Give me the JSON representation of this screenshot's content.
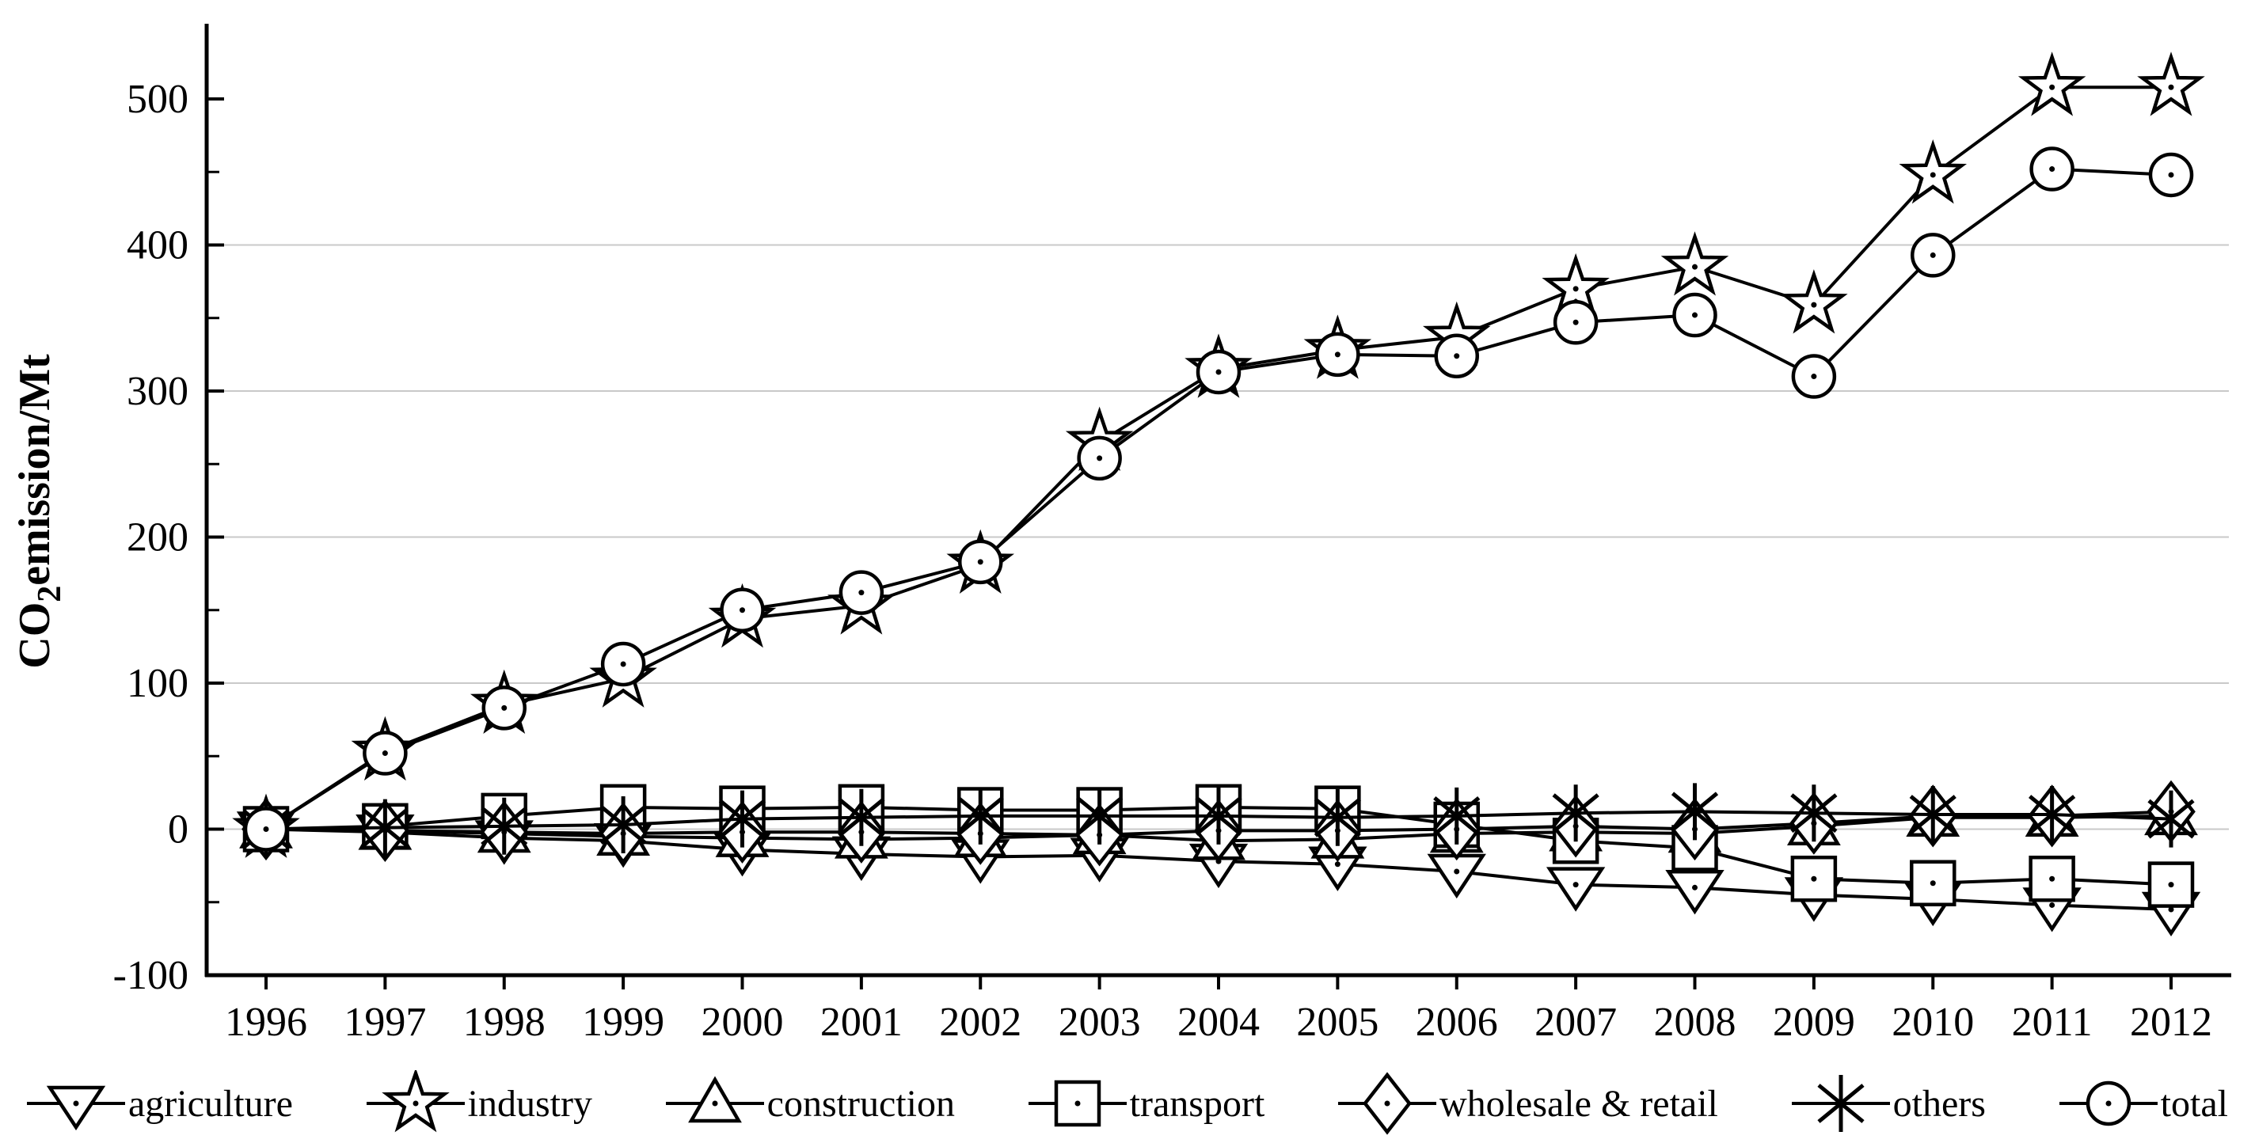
{
  "chart_data": {
    "type": "line",
    "title": "",
    "ylabel": {
      "pre": "CO",
      "sub": "2",
      "post": "emission/Mt"
    },
    "xlabel": "",
    "x_years": [
      "1996",
      "1997",
      "1998",
      "1999",
      "2000",
      "2001",
      "2002",
      "2003",
      "2004",
      "2005",
      "2006",
      "2007",
      "2008",
      "2009",
      "2010",
      "2011",
      "2012"
    ],
    "ylim": [
      -100,
      550
    ],
    "yticks": [
      {
        "value": -100,
        "label": "-100"
      },
      {
        "value": 0,
        "label": "0"
      },
      {
        "value": 100,
        "label": "100"
      },
      {
        "value": 200,
        "label": "200"
      },
      {
        "value": 300,
        "label": "300"
      },
      {
        "value": 400,
        "label": "400"
      },
      {
        "value": 500,
        "label": "500"
      }
    ],
    "y_minor_ticks": [
      -50,
      50,
      150,
      250,
      350,
      450
    ],
    "grid_values": [
      0,
      100,
      200,
      300,
      400
    ],
    "grid_on": true,
    "legend_position": "bottom",
    "colors": {
      "line": "#000000",
      "grid": "#c9c9c9",
      "background": "#ffffff",
      "marker_fill": "#ffffff"
    },
    "series": [
      {
        "name": "agriculture",
        "marker": "triangle-down",
        "values": [
          0,
          -2,
          -6,
          -8,
          -14,
          -17,
          -19,
          -18,
          -22,
          -24,
          -29,
          -38,
          -40,
          -45,
          -48,
          -52,
          -55
        ]
      },
      {
        "name": "industry",
        "marker": "star",
        "values": [
          0,
          53,
          85,
          103,
          144,
          153,
          181,
          265,
          315,
          328,
          337,
          370,
          385,
          359,
          448,
          508,
          508
        ]
      },
      {
        "name": "construction",
        "marker": "triangle-up",
        "values": [
          0,
          -1,
          -3,
          -5,
          -6,
          -7,
          -6,
          -4,
          -8,
          -7,
          -3,
          -2,
          -3,
          2,
          8,
          8,
          9
        ]
      },
      {
        "name": "transport",
        "marker": "square",
        "values": [
          0,
          2,
          9,
          15,
          14,
          15,
          13,
          13,
          15,
          14,
          3,
          -8,
          -13,
          -34,
          -37,
          -34,
          -38
        ]
      },
      {
        "name": "wholesale & retail",
        "marker": "diamond",
        "values": [
          0,
          -1,
          -2,
          -3,
          -2,
          -2,
          -3,
          -4,
          -1,
          -1,
          0,
          2,
          0,
          4,
          9,
          9,
          12
        ]
      },
      {
        "name": "others",
        "marker": "asterisk",
        "values": [
          0,
          1,
          2,
          3,
          7,
          8,
          9,
          9,
          9,
          8,
          9,
          11,
          12,
          11,
          10,
          10,
          7
        ]
      },
      {
        "name": "total",
        "marker": "circle",
        "values": [
          0,
          52,
          83,
          113,
          150,
          162,
          183,
          254,
          313,
          325,
          324,
          347,
          352,
          310,
          393,
          452,
          448
        ]
      }
    ]
  }
}
